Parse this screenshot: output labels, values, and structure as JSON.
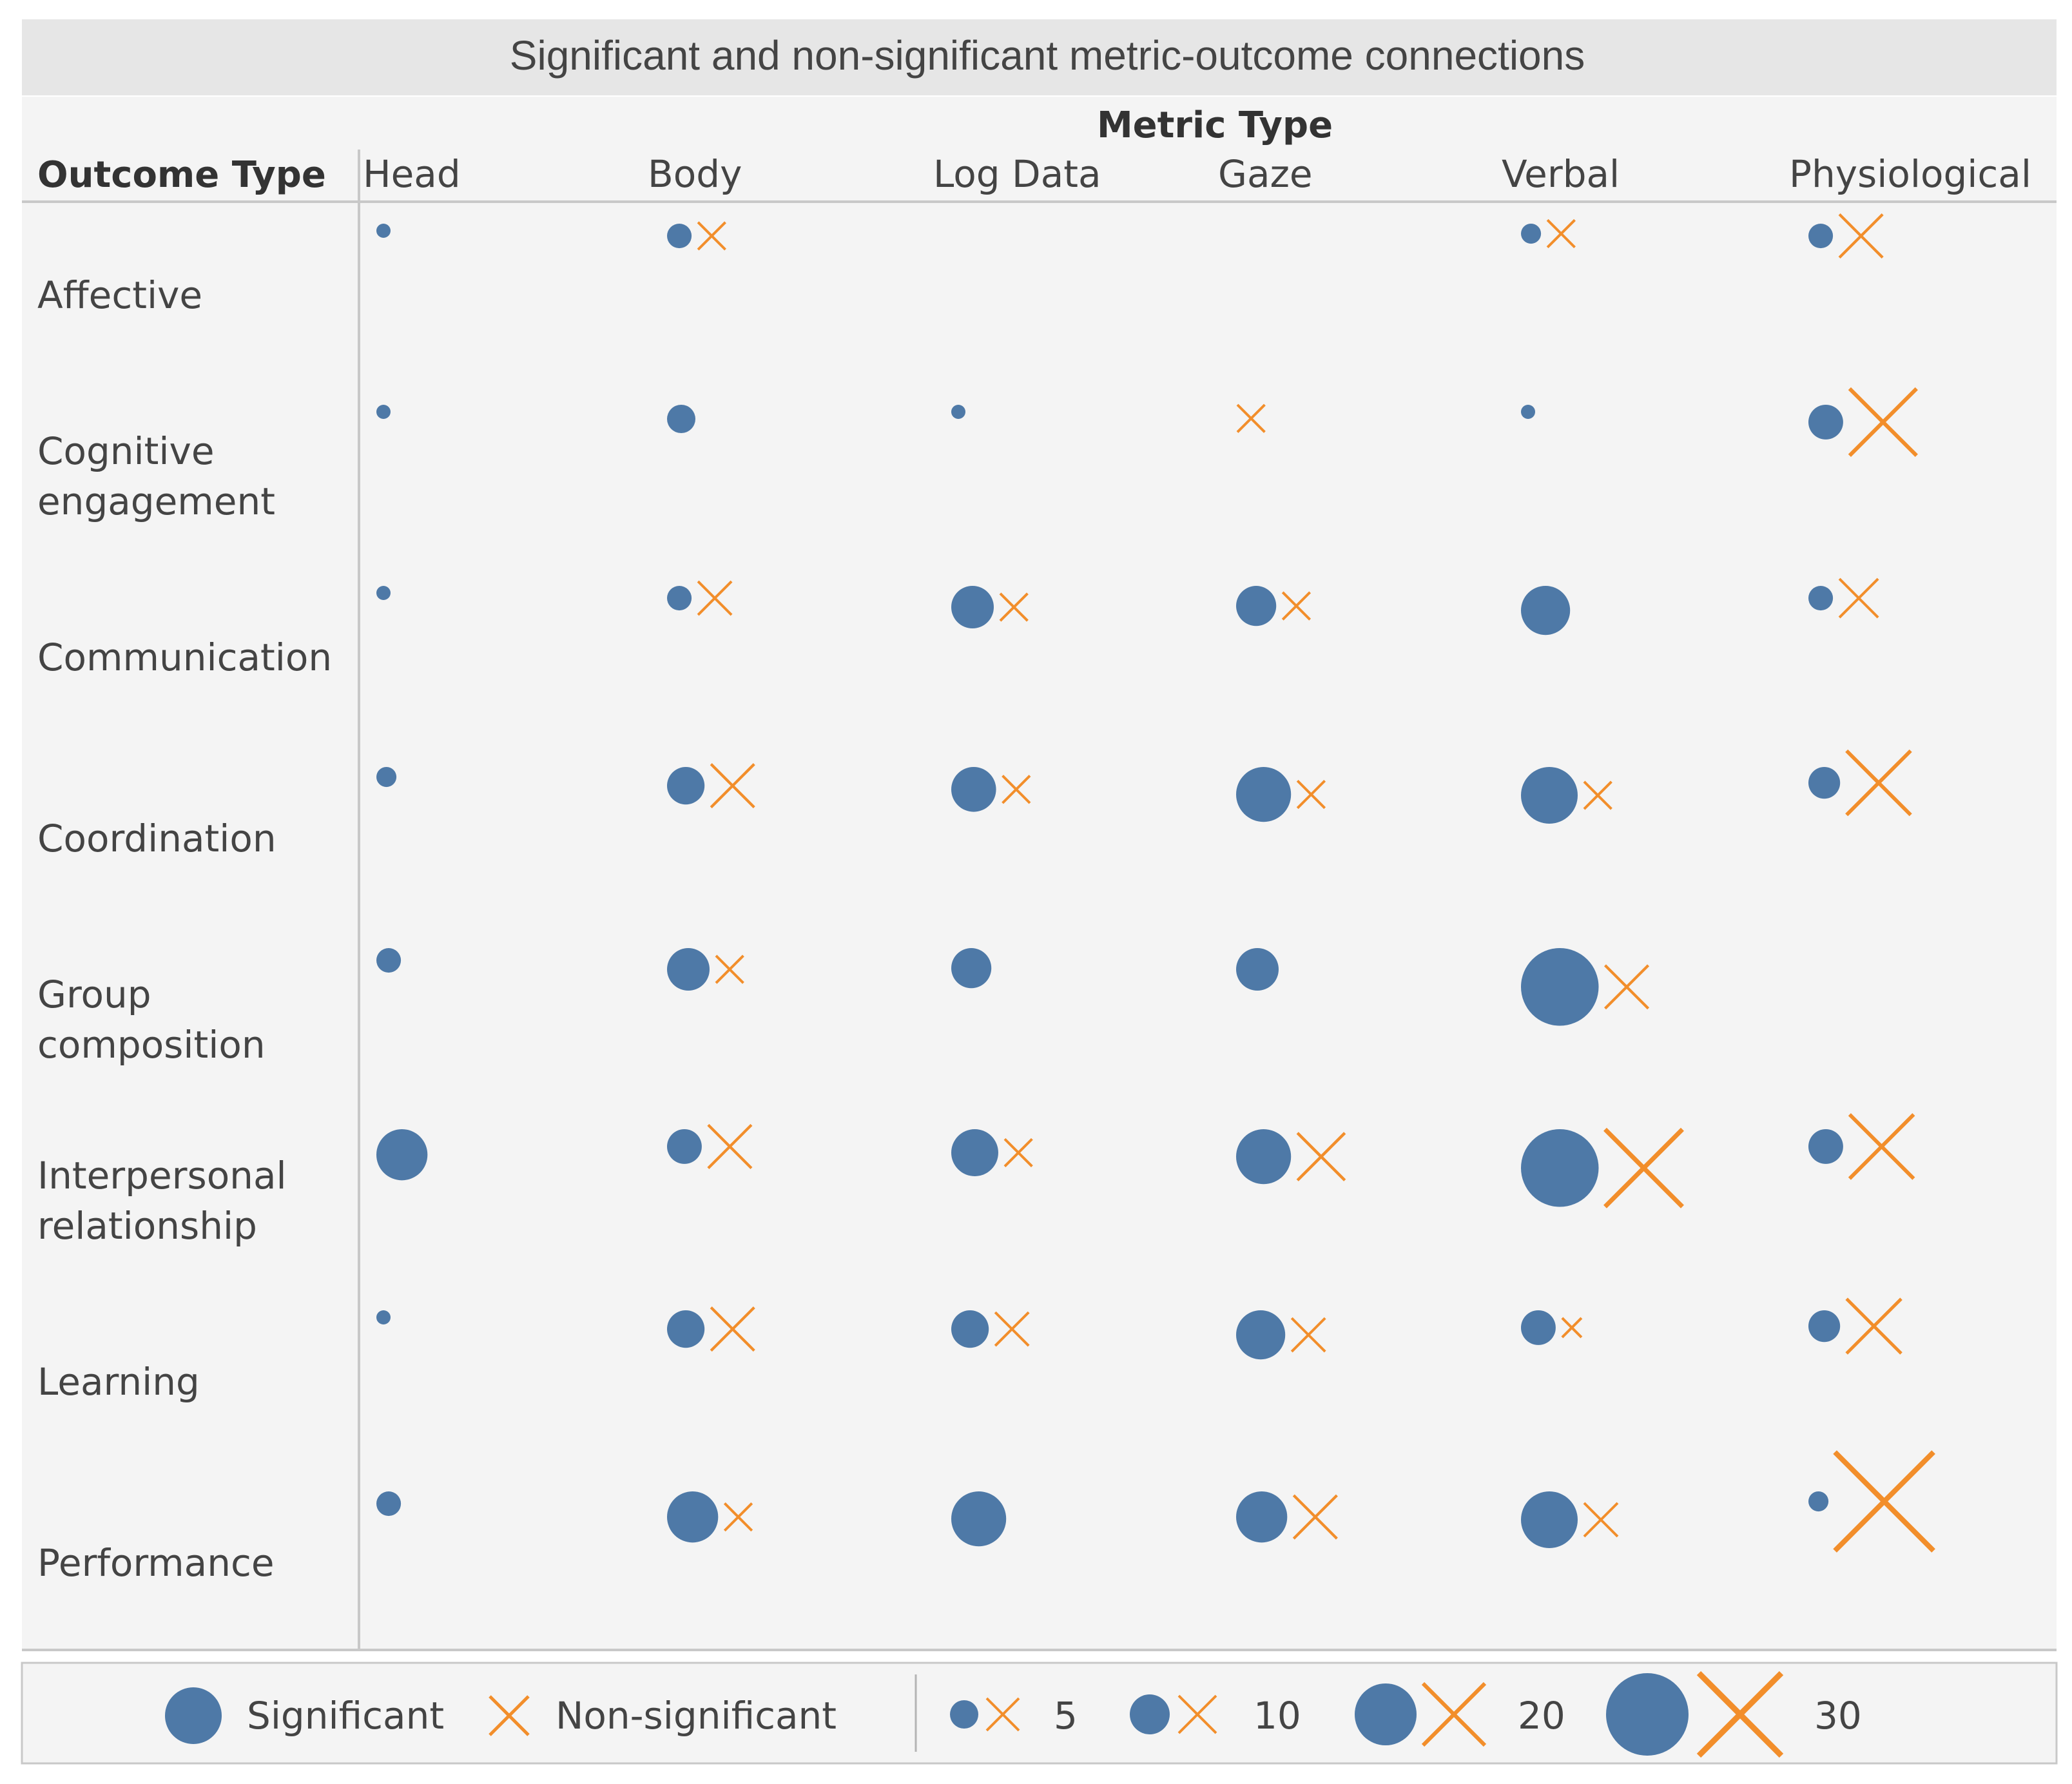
{
  "chart_data": {
    "type": "scatter",
    "title": "Significant and non-significant metric-outcome connections",
    "column_header_title": "Metric Type",
    "row_header_title": "Outcome Type",
    "columns": [
      "Head",
      "Body",
      "Log Data",
      "Gaze",
      "Verbal",
      "Physiological"
    ],
    "rows": [
      {
        "label": "Affective",
        "lines": [
          "Affective"
        ]
      },
      {
        "label": "Cognitive engagement",
        "lines": [
          "Cognitive",
          "engagement"
        ]
      },
      {
        "label": "Communication",
        "lines": [
          "Communication"
        ]
      },
      {
        "label": "Coordination",
        "lines": [
          "Coordination"
        ]
      },
      {
        "label": "Group composition",
        "lines": [
          "Group",
          "composition"
        ]
      },
      {
        "label": "Interpersonal relationship",
        "lines": [
          "Interpersonal",
          "relationship"
        ]
      },
      {
        "label": "Learning",
        "lines": [
          "Learning"
        ]
      },
      {
        "label": "Performance",
        "lines": [
          "Performance"
        ]
      }
    ],
    "series": [
      {
        "name": "Significant",
        "marker": "circle",
        "color": "#4e79a7"
      },
      {
        "name": "Non-significant",
        "marker": "x",
        "color": "#f28e2b"
      }
    ],
    "values": {
      "Significant": [
        [
          1,
          3,
          0,
          0,
          2,
          3
        ],
        [
          1,
          4,
          1,
          0,
          1,
          6
        ],
        [
          1,
          3,
          9,
          8,
          12,
          3
        ],
        [
          2,
          7,
          10,
          15,
          16,
          5
        ],
        [
          3,
          9,
          8,
          9,
          30,
          0
        ],
        [
          13,
          6,
          11,
          15,
          30,
          6
        ],
        [
          1,
          7,
          7,
          12,
          6,
          5
        ],
        [
          3,
          13,
          15,
          13,
          16,
          2
        ]
      ],
      "Non-significant": [
        [
          0,
          2,
          0,
          0,
          2,
          5
        ],
        [
          0,
          0,
          0,
          2,
          0,
          12
        ],
        [
          0,
          3,
          2,
          2,
          0,
          4
        ],
        [
          0,
          5,
          2,
          2,
          2,
          11
        ],
        [
          0,
          2,
          0,
          0,
          5,
          0
        ],
        [
          0,
          5,
          2,
          6,
          16,
          11
        ],
        [
          0,
          5,
          3,
          3,
          1,
          8
        ],
        [
          0,
          2,
          0,
          5,
          3,
          26
        ]
      ]
    },
    "legend": {
      "items": [
        "Significant",
        "Non-significant"
      ],
      "size_values": [
        5,
        10,
        20,
        30
      ],
      "size_labels": [
        "5",
        "10",
        "20",
        "30"
      ],
      "placement": "bottom"
    }
  }
}
